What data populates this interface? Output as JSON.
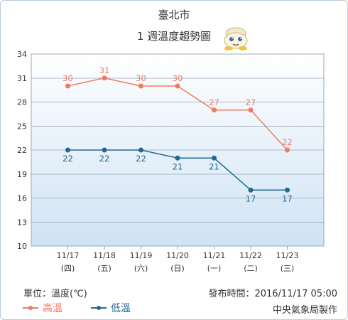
{
  "header": {
    "city": "臺北市",
    "subtitle": "1 週溫度趨勢圖"
  },
  "footer": {
    "unit": "單位：溫度(℃)",
    "issued": "發布時間：2016/11/17 05:00",
    "agency": "中央氣象局製作"
  },
  "legend": {
    "high": "高溫",
    "low": "低溫"
  },
  "colors": {
    "high": "#f07a62",
    "low": "#25698f",
    "plot_top": "#ffffff",
    "plot_bottom": "#cfe3f4"
  },
  "mascot_icon": "weather-mascot-icon",
  "chart_data": {
    "type": "line",
    "categories": [
      "11/17",
      "11/18",
      "11/19",
      "11/20",
      "11/21",
      "11/22",
      "11/23"
    ],
    "category_sublabels": [
      "(四)",
      "(五)",
      "(六)",
      "(日)",
      "(一)",
      "(二)",
      "(三)"
    ],
    "series": [
      {
        "name": "高溫",
        "values": [
          30,
          31,
          30,
          30,
          27,
          27,
          22
        ]
      },
      {
        "name": "低溫",
        "values": [
          22,
          22,
          22,
          21,
          21,
          17,
          17
        ]
      }
    ],
    "ylim": [
      10,
      34
    ],
    "yticks": [
      10,
      13,
      16,
      19,
      22,
      25,
      28,
      31,
      34
    ],
    "grid": true,
    "legend_position": "bottom-left"
  }
}
